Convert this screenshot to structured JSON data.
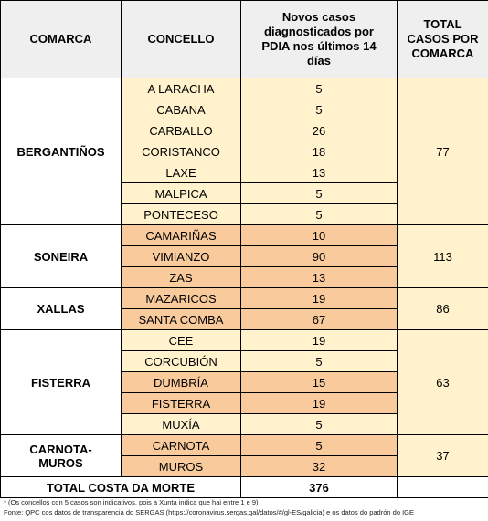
{
  "headers": {
    "comarca": "COMARCA",
    "concello": "CONCELLO",
    "novos": "Novos casos diagnosticados por PDIA nos últimos 14 días",
    "total": "TOTAL CASOS POR COMARCA"
  },
  "groups": [
    {
      "name": "BERGANTIÑOS",
      "total": "77",
      "rows": [
        {
          "concello": "A LARACHA",
          "casos": "5",
          "shade": "light"
        },
        {
          "concello": "CABANA",
          "casos": "5",
          "shade": "light"
        },
        {
          "concello": "CARBALLO",
          "casos": "26",
          "shade": "light"
        },
        {
          "concello": "CORISTANCO",
          "casos": "18",
          "shade": "light"
        },
        {
          "concello": "LAXE",
          "casos": "13",
          "shade": "light"
        },
        {
          "concello": "MALPICA",
          "casos": "5",
          "shade": "light"
        },
        {
          "concello": "PONTECESO",
          "casos": "5",
          "shade": "light"
        }
      ]
    },
    {
      "name": "SONEIRA",
      "total": "113",
      "rows": [
        {
          "concello": "CAMARIÑAS",
          "casos": "10",
          "shade": "dark"
        },
        {
          "concello": "VIMIANZO",
          "casos": "90",
          "shade": "dark"
        },
        {
          "concello": "ZAS",
          "casos": "13",
          "shade": "dark"
        }
      ]
    },
    {
      "name": "XALLAS",
      "total": "86",
      "rows": [
        {
          "concello": "MAZARICOS",
          "casos": "19",
          "shade": "dark"
        },
        {
          "concello": "SANTA COMBA",
          "casos": "67",
          "shade": "dark"
        }
      ]
    },
    {
      "name": "FISTERRA",
      "total": "63",
      "rows": [
        {
          "concello": "CEE",
          "casos": "19",
          "shade": "light"
        },
        {
          "concello": "CORCUBIÓN",
          "casos": "5",
          "shade": "light"
        },
        {
          "concello": "DUMBRÍA",
          "casos": "15",
          "shade": "dark"
        },
        {
          "concello": "FISTERRA",
          "casos": "19",
          "shade": "dark"
        },
        {
          "concello": "MUXÍA",
          "casos": "5",
          "shade": "light"
        }
      ]
    },
    {
      "name": "CARNOTA-MUROS",
      "total": "37",
      "rows": [
        {
          "concello": "CARNOTA",
          "casos": "5",
          "shade": "dark"
        },
        {
          "concello": "MUROS",
          "casos": "32",
          "shade": "dark"
        }
      ]
    }
  ],
  "footer": {
    "label": "TOTAL COSTA DA MORTE",
    "total": "376"
  },
  "notes": [
    "* (Os concellos con 5 casos son indicativos, pois a Xunta indica que hai entre 1 e 9)",
    "Fonte: QPC cos datos de transparencia do SERGAS (https://coronavirus.sergas.gal/datos/#/gl-ES/galicia) e os datos do padrón do IGE"
  ],
  "colors": {
    "light": "#fff2cc",
    "dark": "#f9cb9c",
    "header": "#efefef"
  }
}
